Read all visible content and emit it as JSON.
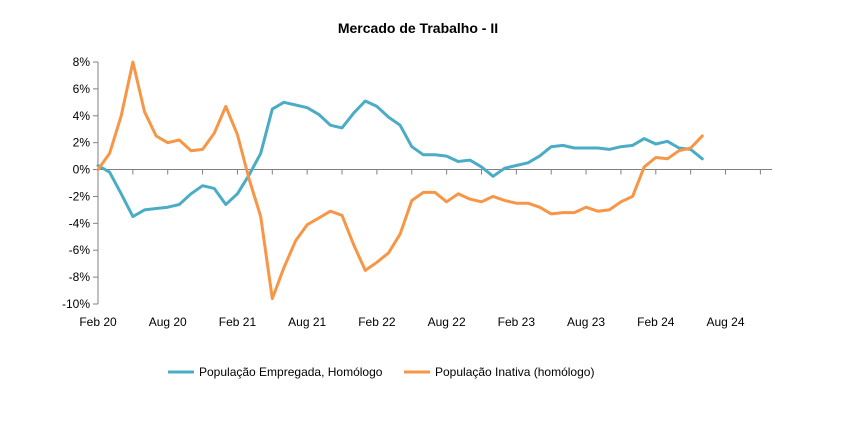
{
  "chart_data": {
    "type": "line",
    "title": "Mercado de Trabalho - II",
    "xlabel": "",
    "ylabel": "",
    "ylim": [
      -10,
      8
    ],
    "yticks": [
      8,
      6,
      4,
      2,
      0,
      -2,
      -4,
      -6,
      -8,
      -10
    ],
    "ytick_labels": [
      "8%",
      "6%",
      "4%",
      "2%",
      "0%",
      "-2%",
      "-4%",
      "-6%",
      "-8%",
      "-10%"
    ],
    "x_range_months": [
      0,
      58
    ],
    "xticks": [
      0,
      6,
      12,
      18,
      24,
      30,
      36,
      42,
      48,
      54
    ],
    "xtick_labels": [
      "Feb 20",
      "Aug 20",
      "Feb 21",
      "Aug 21",
      "Feb 22",
      "Aug 22",
      "Feb 23",
      "Aug 23",
      "Feb 24",
      "Aug 24"
    ],
    "grid": false,
    "legend_position": "bottom",
    "series": [
      {
        "name": "População Empregada, Homólogo",
        "color": "#4BACC6",
        "x": [
          0,
          1,
          2,
          3,
          4,
          5,
          6,
          7,
          8,
          9,
          10,
          11,
          12,
          13,
          14,
          15,
          16,
          17,
          18,
          19,
          20,
          21,
          22,
          23,
          24,
          25,
          26,
          27,
          28,
          29,
          30,
          31,
          32,
          33,
          34,
          35,
          36,
          37,
          38,
          39,
          40,
          41,
          42,
          43,
          44,
          45,
          46,
          47,
          48,
          49,
          50,
          51,
          52
        ],
        "values": [
          0.3,
          -0.2,
          -1.8,
          -3.5,
          -3.0,
          -2.9,
          -2.8,
          -2.6,
          -1.8,
          -1.2,
          -1.4,
          -2.6,
          -1.8,
          -0.4,
          1.2,
          4.5,
          5.0,
          4.8,
          4.6,
          4.1,
          3.3,
          3.1,
          4.2,
          5.1,
          4.7,
          3.9,
          3.3,
          1.7,
          1.1,
          1.1,
          1.0,
          0.6,
          0.7,
          0.2,
          -0.5,
          0.1,
          0.3,
          0.5,
          1.0,
          1.7,
          1.8,
          1.6,
          1.6,
          1.6,
          1.5,
          1.7,
          1.8,
          2.3,
          1.9,
          2.1,
          1.6,
          1.5,
          0.8
        ]
      },
      {
        "name": "População Inativa (homólogo)",
        "color": "#F79646",
        "x": [
          0,
          1,
          2,
          3,
          4,
          5,
          6,
          7,
          8,
          9,
          10,
          11,
          12,
          13,
          14,
          15,
          16,
          17,
          18,
          19,
          20,
          21,
          22,
          23,
          24,
          25,
          26,
          27,
          28,
          29,
          30,
          31,
          32,
          33,
          34,
          35,
          36,
          37,
          38,
          39,
          40,
          41,
          42,
          43,
          44,
          45,
          46,
          47,
          48,
          49,
          50,
          51,
          52
        ],
        "values": [
          0.0,
          1.2,
          4.0,
          8.0,
          4.3,
          2.5,
          2.0,
          2.2,
          1.4,
          1.5,
          2.7,
          4.7,
          2.6,
          -0.7,
          -3.5,
          -9.6,
          -7.3,
          -5.3,
          -4.1,
          -3.6,
          -3.1,
          -3.4,
          -5.6,
          -7.5,
          -6.9,
          -6.2,
          -4.8,
          -2.3,
          -1.7,
          -1.7,
          -2.4,
          -1.8,
          -2.2,
          -2.4,
          -2.0,
          -2.3,
          -2.5,
          -2.5,
          -2.8,
          -3.3,
          -3.2,
          -3.2,
          -2.8,
          -3.1,
          -3.0,
          -2.4,
          -2.0,
          0.2,
          0.9,
          0.8,
          1.4,
          1.6,
          2.5
        ]
      }
    ]
  }
}
